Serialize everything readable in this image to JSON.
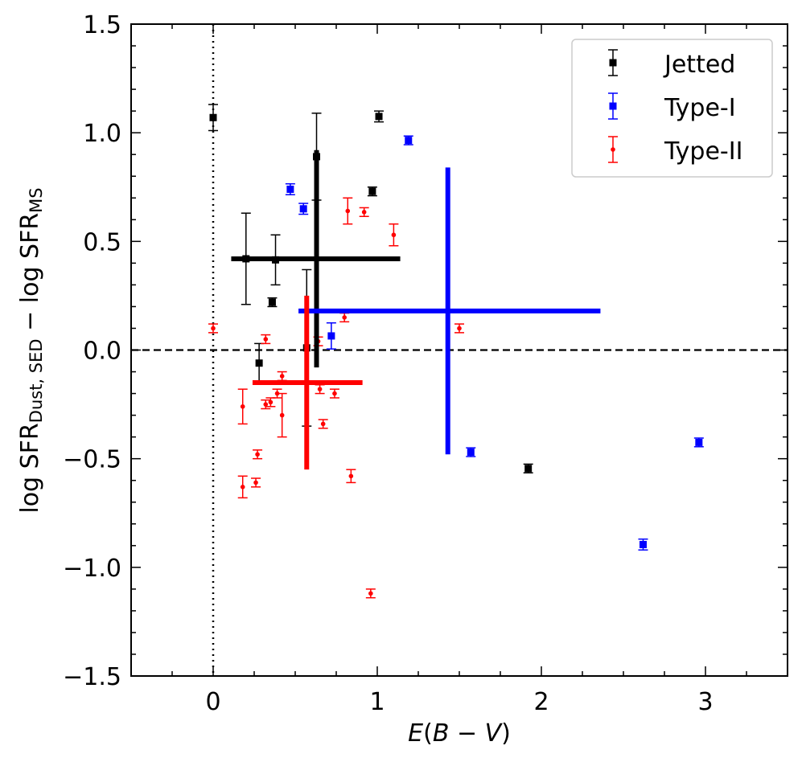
{
  "chart_data": {
    "type": "scatter",
    "xlabel": "E(B − V)",
    "xlabel_parts": {
      "var": "E",
      "open": "(",
      "b": "B",
      "minus": " − ",
      "v": "V",
      "close": ")"
    },
    "ylabel": "log SFR_Dust,SED − log SFR_MS",
    "ylabel_parts": {
      "log1": "log SFR",
      "sub1": "Dust, SED",
      "minus": " − log SFR",
      "sub2": "MS"
    },
    "xlim": [
      -0.5,
      3.5
    ],
    "ylim": [
      -1.5,
      1.5
    ],
    "xticks": [
      0,
      1,
      2,
      3
    ],
    "xtick_labels": [
      "0",
      "1",
      "2",
      "3"
    ],
    "yticks": [
      -1.5,
      -1.0,
      -0.5,
      0.0,
      0.5,
      1.0,
      1.5
    ],
    "ytick_labels": [
      "−1.5",
      "−1.0",
      "−0.5",
      "0.0",
      "0.5",
      "1.0",
      "1.5"
    ],
    "reference_lines": {
      "horizontal_dashed_y": 0.0,
      "vertical_dotted_x": 0.0
    },
    "legend": {
      "position": "top-right",
      "entries": [
        "Jetted",
        "Type-I",
        "Type-II"
      ]
    },
    "series": [
      {
        "name": "Jetted",
        "color": "#000000",
        "marker": "square",
        "points": [
          {
            "x": 0.0,
            "y": 1.07,
            "err": 0.06
          },
          {
            "x": 0.2,
            "y": 0.42,
            "err": 0.21
          },
          {
            "x": 0.38,
            "y": 0.415,
            "err": 0.115
          },
          {
            "x": 0.36,
            "y": 0.22,
            "err": 0.02
          },
          {
            "x": 0.28,
            "y": -0.06,
            "err": 0.09
          },
          {
            "x": 0.57,
            "y": 0.01,
            "err": 0.36
          },
          {
            "x": 0.63,
            "y": 0.89,
            "err": 0.2
          },
          {
            "x": 0.97,
            "y": 0.73,
            "err": 0.02
          },
          {
            "x": 1.01,
            "y": 1.075,
            "err": 0.025
          },
          {
            "x": 1.92,
            "y": -0.545,
            "err": 0.02
          }
        ],
        "median_cross": {
          "x": 0.63,
          "y": 0.42,
          "x_range": [
            0.11,
            1.14
          ],
          "y_range": [
            -0.08,
            0.92
          ]
        }
      },
      {
        "name": "Type-I",
        "color": "#0000ff",
        "marker": "square",
        "points": [
          {
            "x": 0.47,
            "y": 0.74,
            "err": 0.025
          },
          {
            "x": 0.55,
            "y": 0.65,
            "err": 0.025
          },
          {
            "x": 1.19,
            "y": 0.965,
            "err": 0.02
          },
          {
            "x": 0.72,
            "y": 0.065,
            "err": 0.06
          },
          {
            "x": 1.57,
            "y": -0.47,
            "err": 0.02
          },
          {
            "x": 2.62,
            "y": -0.895,
            "err": 0.025
          },
          {
            "x": 2.96,
            "y": -0.425,
            "err": 0.02
          }
        ],
        "median_cross": {
          "x": 1.43,
          "y": 0.18,
          "x_range": [
            0.52,
            2.36
          ],
          "y_range": [
            -0.48,
            0.84
          ]
        }
      },
      {
        "name": "Type-II",
        "color": "#ff0000",
        "marker": "circle",
        "points": [
          {
            "x": 0.0,
            "y": 0.1,
            "err": 0.02
          },
          {
            "x": 0.18,
            "y": -0.26,
            "err": 0.08
          },
          {
            "x": 0.18,
            "y": -0.63,
            "err": 0.05
          },
          {
            "x": 0.26,
            "y": -0.61,
            "err": 0.02
          },
          {
            "x": 0.27,
            "y": -0.48,
            "err": 0.02
          },
          {
            "x": 0.32,
            "y": 0.05,
            "err": 0.02
          },
          {
            "x": 0.32,
            "y": -0.25,
            "err": 0.02
          },
          {
            "x": 0.35,
            "y": -0.24,
            "err": 0.02
          },
          {
            "x": 0.39,
            "y": -0.2,
            "err": 0.02
          },
          {
            "x": 0.42,
            "y": -0.12,
            "err": 0.02
          },
          {
            "x": 0.42,
            "y": -0.3,
            "err": 0.1
          },
          {
            "x": 0.64,
            "y": 0.04,
            "err": 0.02
          },
          {
            "x": 0.65,
            "y": -0.18,
            "err": 0.02
          },
          {
            "x": 0.67,
            "y": -0.34,
            "err": 0.02
          },
          {
            "x": 0.74,
            "y": -0.2,
            "err": 0.02
          },
          {
            "x": 0.8,
            "y": 0.15,
            "err": 0.02
          },
          {
            "x": 0.82,
            "y": 0.64,
            "err": 0.06
          },
          {
            "x": 0.84,
            "y": -0.58,
            "err": 0.03
          },
          {
            "x": 0.92,
            "y": 0.635,
            "err": 0.02
          },
          {
            "x": 0.96,
            "y": -1.12,
            "err": 0.02
          },
          {
            "x": 1.1,
            "y": 0.53,
            "err": 0.05
          },
          {
            "x": 1.5,
            "y": 0.1,
            "err": 0.02
          }
        ],
        "median_cross": {
          "x": 0.57,
          "y": -0.15,
          "x_range": [
            0.24,
            0.91
          ],
          "y_range": [
            -0.55,
            0.25
          ]
        }
      }
    ]
  }
}
